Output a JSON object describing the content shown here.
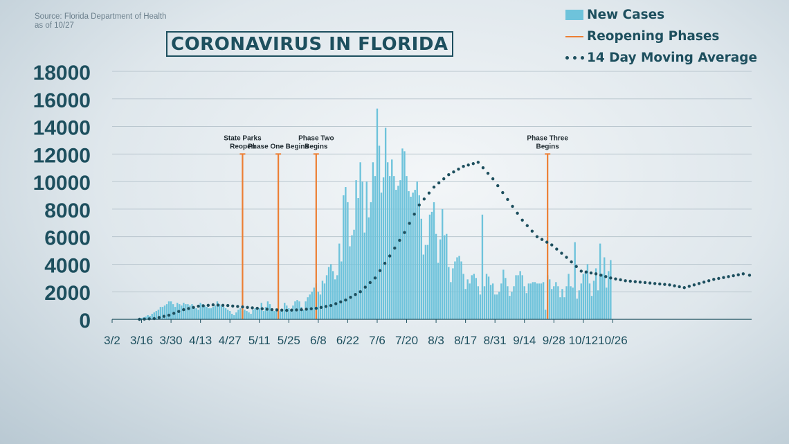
{
  "header": {
    "source_line1": "Source: Florida Department of Health",
    "source_line2": "as of 10/27",
    "title": "CORONAVIRUS IN FLORIDA"
  },
  "legend": {
    "new_cases": "New Cases",
    "reopening": "Reopening Phases",
    "moving_avg": "14 Day Moving Average"
  },
  "colors": {
    "bars": "#6ec3db",
    "phase_lines": "#ec7e33",
    "moving_avg": "#1d4f5e",
    "axis_text": "#1d4f5e",
    "gridlines": "#b9c6ce"
  },
  "chart_data": {
    "type": "bar",
    "title": "CORONAVIRUS IN FLORIDA",
    "x_start_date": "3/1",
    "ylim": [
      0,
      18000
    ],
    "yticks": [
      0,
      2000,
      4000,
      6000,
      8000,
      10000,
      12000,
      14000,
      16000,
      18000
    ],
    "ytick_labels": [
      "0",
      "2000",
      "4000",
      "6000",
      "8000",
      "10000",
      "12000",
      "14000",
      "16000",
      "18000"
    ],
    "xtick_labels": [
      "3/2",
      "3/16",
      "3/30",
      "4/13",
      "4/27",
      "5/11",
      "5/25",
      "6/8",
      "6/22",
      "7/6",
      "7/20",
      "8/3",
      "8/17",
      "8/31",
      "9/14",
      "9/28",
      "10/12",
      "10/26"
    ],
    "grid": true,
    "legend_position": "top-right",
    "series": [
      {
        "name": "New Cases",
        "type": "bar",
        "values": [
          0,
          0,
          0,
          0,
          0,
          0,
          0,
          10,
          20,
          10,
          30,
          40,
          50,
          80,
          100,
          150,
          200,
          300,
          250,
          400,
          500,
          600,
          700,
          900,
          900,
          1000,
          1100,
          1300,
          1300,
          1100,
          900,
          1200,
          1100,
          1000,
          1200,
          1100,
          1100,
          1000,
          1100,
          900,
          800,
          700,
          1200,
          1100,
          1000,
          900,
          800,
          800,
          900,
          1000,
          1300,
          1100,
          1000,
          900,
          800,
          700,
          600,
          400,
          300,
          500,
          700,
          800,
          600,
          700,
          600,
          500,
          400,
          700,
          800,
          900,
          800,
          1200,
          600,
          900,
          1300,
          1100,
          700,
          600,
          800,
          700,
          600,
          700,
          1200,
          1000,
          800,
          700,
          1000,
          1300,
          1400,
          1300,
          900,
          700,
          1300,
          1600,
          1800,
          2000,
          2300,
          2600,
          2000,
          1800,
          2800,
          2600,
          3200,
          3800,
          4000,
          3500,
          2900,
          3200,
          5500,
          4200,
          9000,
          9600,
          8500,
          5300,
          6100,
          6500,
          10100,
          8800,
          11400,
          10000,
          6300,
          10000,
          7400,
          8500,
          11400,
          10400,
          15300,
          12600,
          9200,
          10300,
          13900,
          11400,
          10400,
          11600,
          10400,
          9400,
          9700,
          10100,
          12400,
          12200,
          10400,
          9300,
          8900,
          9200,
          9400,
          10000,
          9000,
          7300,
          4700,
          5400,
          5400,
          7600,
          7800,
          8500,
          6200,
          4100,
          5800,
          8000,
          6100,
          6200,
          3800,
          2700,
          3700,
          4200,
          4500,
          4600,
          4200,
          3300,
          2200,
          2900,
          2600,
          3200,
          3300,
          3000,
          2400,
          1800,
          7600,
          2400,
          3300,
          3100,
          2500,
          2600,
          1800,
          1800,
          2000,
          2600,
          3600,
          3000,
          2400,
          1700,
          2000,
          2400,
          3200,
          3200,
          3500,
          3200,
          2400,
          1900,
          2600,
          2600,
          2700,
          2700,
          2600,
          2600,
          2600,
          2700,
          700,
          3200,
          2900,
          2200,
          2400,
          2700,
          2400,
          1600,
          2200,
          1600,
          2400,
          3300,
          2400,
          2300,
          5600,
          1500,
          2100,
          2600,
          3300,
          3400,
          4000,
          2600,
          1700,
          2800,
          3700,
          2100,
          5500,
          3300,
          4500,
          2300,
          3500,
          4300
        ]
      },
      {
        "name": "14 Day Moving Average",
        "type": "line",
        "points": [
          [
            14,
            0
          ],
          [
            21,
            50
          ],
          [
            28,
            300
          ],
          [
            35,
            700
          ],
          [
            42,
            950
          ],
          [
            49,
            1050
          ],
          [
            56,
            1000
          ],
          [
            63,
            900
          ],
          [
            70,
            800
          ],
          [
            77,
            700
          ],
          [
            84,
            650
          ],
          [
            91,
            700
          ],
          [
            98,
            800
          ],
          [
            105,
            1000
          ],
          [
            112,
            1400
          ],
          [
            119,
            2000
          ],
          [
            126,
            3000
          ],
          [
            133,
            4600
          ],
          [
            140,
            6300
          ],
          [
            147,
            8300
          ],
          [
            154,
            9600
          ],
          [
            161,
            10500
          ],
          [
            168,
            11100
          ],
          [
            175,
            11400
          ],
          [
            182,
            10200
          ],
          [
            189,
            8700
          ],
          [
            196,
            7200
          ],
          [
            203,
            6000
          ],
          [
            210,
            5400
          ],
          [
            217,
            4500
          ],
          [
            224,
            3500
          ],
          [
            231,
            3300
          ],
          [
            238,
            3000
          ],
          [
            245,
            2800
          ],
          [
            252,
            2700
          ],
          [
            259,
            2600
          ],
          [
            266,
            2500
          ],
          [
            273,
            2300
          ],
          [
            280,
            2600
          ],
          [
            287,
            2900
          ],
          [
            294,
            3100
          ],
          [
            301,
            3300
          ],
          [
            304,
            3200
          ]
        ]
      },
      {
        "name": "Reopening Phases",
        "type": "vline",
        "events": [
          {
            "day": 63,
            "label_lines": [
              "State Parks",
              "Reopen"
            ]
          },
          {
            "day": 80,
            "label_lines": [
              "Phase One Begins"
            ]
          },
          {
            "day": 98,
            "label_lines": [
              "Phase Two",
              "Begins"
            ]
          },
          {
            "day": 208,
            "label_lines": [
              "Phase Three",
              "Begins"
            ]
          }
        ]
      }
    ]
  }
}
